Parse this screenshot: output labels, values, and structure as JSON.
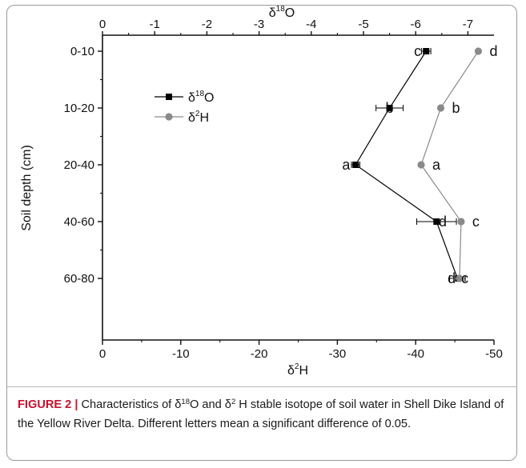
{
  "chart_data": {
    "type": "line",
    "ylabel": "Soil depth (cm)",
    "top_axis": {
      "label_base": "δ",
      "label_sup": "18",
      "label_tail": "O",
      "ticks": [
        0,
        -1,
        -2,
        -3,
        -4,
        -5,
        -6,
        -7
      ],
      "range": [
        0,
        -7.5
      ]
    },
    "bottom_axis": {
      "label_base": "δ",
      "label_sup": "2",
      "label_tail": "H",
      "ticks": [
        0,
        -10,
        -20,
        -30,
        -40,
        -50
      ],
      "range": [
        0,
        -50
      ]
    },
    "categories": [
      "0-10",
      "10-20",
      "20-40",
      "40-60",
      "60-80"
    ],
    "series": [
      {
        "name_base": "δ",
        "name_sup": "18",
        "name_tail": "O",
        "axis": "top",
        "color": "#000000",
        "marker": "square",
        "values": [
          -6.2,
          -5.5,
          -4.85,
          -6.4,
          -6.8
        ],
        "error": [
          0.09,
          0.26,
          0.08,
          0.38,
          0.15
        ],
        "letters": [
          "c",
          "b",
          "a",
          "d",
          "d"
        ],
        "letter_side": [
          "left",
          "left",
          "left",
          "left",
          "left"
        ]
      },
      {
        "name_base": "δ",
        "name_sup": "2",
        "name_tail": "H",
        "axis": "bottom",
        "color": "#8a8a8a",
        "marker": "circle",
        "values": [
          -48.0,
          -43.2,
          -40.7,
          -45.8,
          -45.6
        ],
        "error": [
          0,
          0,
          0,
          0,
          0.6
        ],
        "letters": [
          "d",
          "b",
          "a",
          "c",
          "c"
        ],
        "letter_side": [
          "right",
          "right",
          "right",
          "right",
          "right"
        ]
      }
    ],
    "legend_position": "top-left"
  },
  "caption": {
    "label": "FIGURE 2 |",
    "text_1": " Characteristics of δ",
    "sup_1": "18",
    "text_2": "O and δ",
    "sup_2": "2",
    "text_3": " H stable isotope of soil water in Shell Dike Island of the Yellow River Delta. Different letters mean a significant difference of 0.05."
  }
}
